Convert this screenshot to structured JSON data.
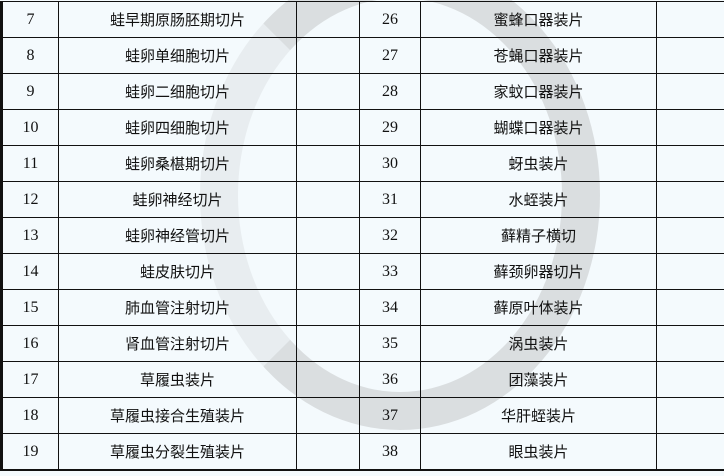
{
  "rows": [
    {
      "n1": "7",
      "name1": "蛙早期原肠胚期切片",
      "n2": "26",
      "name2": "蜜蜂口器装片"
    },
    {
      "n1": "8",
      "name1": "蛙卵单细胞切片",
      "n2": "27",
      "name2": "苍蝇口器装片"
    },
    {
      "n1": "9",
      "name1": "蛙卵二细胞切片",
      "n2": "28",
      "name2": "家蚊口器装片"
    },
    {
      "n1": "10",
      "name1": "蛙卵四细胞切片",
      "n2": "29",
      "name2": "蝴蝶口器装片"
    },
    {
      "n1": "11",
      "name1": "蛙卵桑椹期切片",
      "n2": "30",
      "name2": "蚜虫装片"
    },
    {
      "n1": "12",
      "name1": "蛙卵神经切片",
      "n2": "31",
      "name2": "水蛭装片"
    },
    {
      "n1": "13",
      "name1": "蛙卵神经管切片",
      "n2": "32",
      "name2": "藓精子横切"
    },
    {
      "n1": "14",
      "name1": "蛙皮肤切片",
      "n2": "33",
      "name2": "藓颈卵器切片"
    },
    {
      "n1": "15",
      "name1": "肺血管注射切片",
      "n2": "34",
      "name2": "藓原叶体装片"
    },
    {
      "n1": "16",
      "name1": "肾血管注射切片",
      "n2": "35",
      "name2": "涡虫装片"
    },
    {
      "n1": "17",
      "name1": "草履虫装片",
      "n2": "36",
      "name2": "团藻装片"
    },
    {
      "n1": "18",
      "name1": "草履虫接合生殖装片",
      "n2": "37",
      "name2": "华肝蛭装片"
    },
    {
      "n1": "19",
      "name1": "草履虫分裂生殖装片",
      "n2": "38",
      "name2": "眼虫装片"
    }
  ]
}
